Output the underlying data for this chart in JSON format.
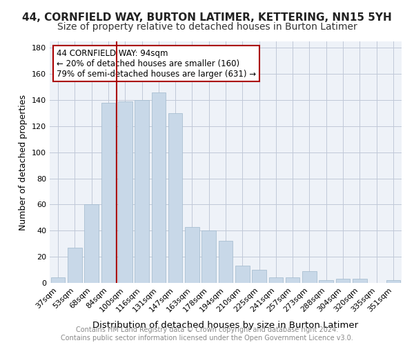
{
  "title": "44, CORNFIELD WAY, BURTON LATIMER, KETTERING, NN15 5YH",
  "subtitle": "Size of property relative to detached houses in Burton Latimer",
  "xlabel": "Distribution of detached houses by size in Burton Latimer",
  "ylabel": "Number of detached properties",
  "categories": [
    "37sqm",
    "53sqm",
    "68sqm",
    "84sqm",
    "100sqm",
    "116sqm",
    "131sqm",
    "147sqm",
    "163sqm",
    "178sqm",
    "194sqm",
    "210sqm",
    "225sqm",
    "241sqm",
    "257sqm",
    "273sqm",
    "288sqm",
    "304sqm",
    "320sqm",
    "335sqm",
    "351sqm"
  ],
  "values": [
    4,
    27,
    60,
    138,
    139,
    140,
    146,
    130,
    43,
    40,
    32,
    13,
    10,
    4,
    4,
    9,
    2,
    3,
    3,
    0,
    2
  ],
  "bar_color": "#c8d8e8",
  "bar_edgecolor": "#a0b8cc",
  "bar_linewidth": 0.5,
  "vline_x_index": 4,
  "vline_color": "#aa0000",
  "vline_linewidth": 1.5,
  "annotation_text": "44 CORNFIELD WAY: 94sqm\n← 20% of detached houses are smaller (160)\n79% of semi-detached houses are larger (631) →",
  "annotation_box_color": "#aa0000",
  "annotation_bg": "#ffffff",
  "ylim": [
    0,
    185
  ],
  "yticks": [
    0,
    20,
    40,
    60,
    80,
    100,
    120,
    140,
    160,
    180
  ],
  "grid_color": "#c0c8d8",
  "background_color": "#eef2f8",
  "title_fontsize": 11,
  "subtitle_fontsize": 10,
  "xlabel_fontsize": 9.5,
  "ylabel_fontsize": 9,
  "tick_fontsize": 8,
  "annotation_fontsize": 8.5,
  "footer_line1": "Contains HM Land Registry data © Crown copyright and database right 2024.",
  "footer_line2": "Contains public sector information licensed under the Open Government Licence v3.0.",
  "footer_fontsize": 7,
  "footer_color": "#888888"
}
